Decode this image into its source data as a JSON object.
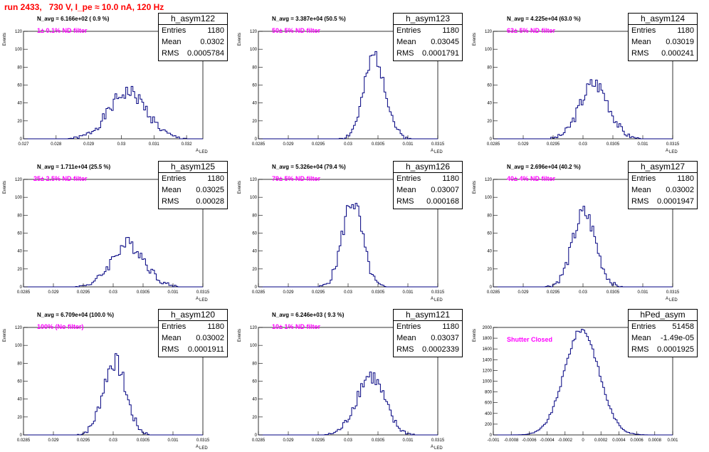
{
  "title": "run 2433,   730 V, I_pe ≈ 10.0 nA, 120 Hz",
  "stat_labels": {
    "entries": "Entries",
    "mean": "Mean",
    "rms": "RMS"
  },
  "colors": {
    "histogram": "#000080",
    "title": "#ff0000",
    "annotation": "#ff00ff"
  },
  "chart_data": [
    {
      "type": "bar",
      "name": "h_asym122",
      "entries": "1180",
      "mean": "0.0302",
      "rms": "0.0005784",
      "n_avg": "N_avg = 6.166e+02 ( 0.9 %)",
      "annotation": "1± 0.1% ND filter",
      "xlabel": "A",
      "xlabel_sub": "LED",
      "ylabel": "Events",
      "xlim": [
        0.027,
        0.0325
      ],
      "ylim": [
        0,
        120
      ],
      "xticks": [
        0.027,
        0.028,
        0.029,
        0.03,
        0.031,
        0.032
      ],
      "xtick_labels": [
        "0.027",
        "0.028",
        "0.029",
        "0.03",
        "0.031",
        "0.032"
      ],
      "yticks": [
        0,
        20,
        40,
        60,
        80,
        100,
        120
      ],
      "ytick_labels": [
        "0",
        "20",
        "40",
        "60",
        "80",
        "100",
        "120"
      ],
      "hist_mean": 0.0302,
      "hist_rms": 0.000578,
      "hist_peak": 52,
      "hist_seed": 1
    },
    {
      "type": "bar",
      "name": "h_asym123",
      "entries": "1180",
      "mean": "0.03045",
      "rms": "0.0001791",
      "n_avg": "N_avg = 3.387e+04 (50.5 %)",
      "annotation": "50± 5% ND filter",
      "xlabel": "A",
      "xlabel_sub": "LED",
      "ylabel": "Events",
      "xlim": [
        0.0285,
        0.0315
      ],
      "ylim": [
        0,
        120
      ],
      "xticks": [
        0.0285,
        0.029,
        0.0295,
        0.03,
        0.0305,
        0.031,
        0.0315
      ],
      "xtick_labels": [
        "0.0285",
        "0.029",
        "0.0295",
        "0.03",
        "0.0305",
        "0.031",
        "0.0315"
      ],
      "yticks": [
        0,
        20,
        40,
        60,
        80,
        100,
        120
      ],
      "ytick_labels": [
        "0",
        "20",
        "40",
        "60",
        "80",
        "100",
        "120"
      ],
      "hist_mean": 0.03045,
      "hist_rms": 0.000179,
      "hist_peak": 92,
      "hist_seed": 2
    },
    {
      "type": "bar",
      "name": "h_asym124",
      "entries": "1180",
      "mean": "0.03019",
      "rms": "0.000241",
      "n_avg": "N_avg = 4.225e+04 (63.0 %)",
      "annotation": "63± 5% ND filter",
      "xlabel": "A",
      "xlabel_sub": "LED",
      "ylabel": "Events",
      "xlim": [
        0.0285,
        0.0315
      ],
      "ylim": [
        0,
        120
      ],
      "xticks": [
        0.0285,
        0.029,
        0.0295,
        0.03,
        0.0305,
        0.031,
        0.0315
      ],
      "xtick_labels": [
        "0.0285",
        "0.029",
        "0.0295",
        "0.03",
        "0.0305",
        "0.031",
        "0.0315"
      ],
      "yticks": [
        0,
        20,
        40,
        60,
        80,
        100,
        120
      ],
      "ytick_labels": [
        "0",
        "20",
        "40",
        "60",
        "80",
        "100",
        "120"
      ],
      "hist_mean": 0.03019,
      "hist_rms": 0.000241,
      "hist_peak": 62,
      "hist_seed": 3
    },
    {
      "type": "bar",
      "name": "h_asym125",
      "entries": "1180",
      "mean": "0.03025",
      "rms": "0.00028",
      "n_avg": "N_avg = 1.711e+04 (25.5 %)",
      "annotation": "25± 2.5% ND filter",
      "xlabel": "A",
      "xlabel_sub": "LED",
      "ylabel": "Events",
      "xlim": [
        0.0285,
        0.0315
      ],
      "ylim": [
        0,
        120
      ],
      "xticks": [
        0.0285,
        0.029,
        0.0295,
        0.03,
        0.0305,
        0.031,
        0.0315
      ],
      "xtick_labels": [
        "0.0285",
        "0.029",
        "0.0295",
        "0.03",
        "0.0305",
        "0.031",
        "0.0315"
      ],
      "yticks": [
        0,
        20,
        40,
        60,
        80,
        100,
        120
      ],
      "ytick_labels": [
        "0",
        "20",
        "40",
        "60",
        "80",
        "100",
        "120"
      ],
      "hist_mean": 0.03025,
      "hist_rms": 0.00028,
      "hist_peak": 48,
      "hist_seed": 4
    },
    {
      "type": "bar",
      "name": "h_asym126",
      "entries": "1180",
      "mean": "0.03007",
      "rms": "0.000168",
      "n_avg": "N_avg = 5.326e+04 (79.4 %)",
      "annotation": "79± 5% ND filter",
      "xlabel": "A",
      "xlabel_sub": "LED",
      "ylabel": "Events",
      "xlim": [
        0.0285,
        0.0315
      ],
      "ylim": [
        0,
        120
      ],
      "xticks": [
        0.0285,
        0.029,
        0.0295,
        0.03,
        0.0305,
        0.031,
        0.0315
      ],
      "xtick_labels": [
        "0.0285",
        "0.029",
        "0.0295",
        "0.03",
        "0.0305",
        "0.031",
        "0.0315"
      ],
      "yticks": [
        0,
        20,
        40,
        60,
        80,
        100,
        120
      ],
      "ytick_labels": [
        "0",
        "20",
        "40",
        "60",
        "80",
        "100",
        "120"
      ],
      "hist_mean": 0.03007,
      "hist_rms": 0.000168,
      "hist_peak": 96,
      "hist_seed": 5
    },
    {
      "type": "bar",
      "name": "h_asym127",
      "entries": "1180",
      "mean": "0.03002",
      "rms": "0.0001947",
      "n_avg": "N_avg = 2.696e+04 (40.2 %)",
      "annotation": "40± 4% ND filter",
      "xlabel": "A",
      "xlabel_sub": "LED",
      "ylabel": "Events",
      "xlim": [
        0.0285,
        0.0315
      ],
      "ylim": [
        0,
        120
      ],
      "xticks": [
        0.0285,
        0.029,
        0.0295,
        0.03,
        0.0305,
        0.031,
        0.0315
      ],
      "xtick_labels": [
        "0.0285",
        "0.029",
        "0.0295",
        "0.03",
        "0.0305",
        "0.031",
        "0.0315"
      ],
      "yticks": [
        0,
        20,
        40,
        60,
        80,
        100,
        120
      ],
      "ytick_labels": [
        "0",
        "20",
        "40",
        "60",
        "80",
        "100",
        "120"
      ],
      "hist_mean": 0.03002,
      "hist_rms": 0.000195,
      "hist_peak": 82,
      "hist_seed": 6
    },
    {
      "type": "bar",
      "name": "h_asym120",
      "entries": "1180",
      "mean": "0.03002",
      "rms": "0.0001911",
      "n_avg": "N_avg = 6.709e+04 (100.0 %)",
      "annotation": "100% (No filter)",
      "xlabel": "A",
      "xlabel_sub": "LED",
      "ylabel": "Events",
      "xlim": [
        0.0285,
        0.0315
      ],
      "ylim": [
        0,
        120
      ],
      "xticks": [
        0.0285,
        0.029,
        0.0295,
        0.03,
        0.0305,
        0.031,
        0.0315
      ],
      "xtick_labels": [
        "0.0285",
        "0.029",
        "0.0295",
        "0.03",
        "0.0305",
        "0.031",
        "0.0315"
      ],
      "yticks": [
        0,
        20,
        40,
        60,
        80,
        100,
        120
      ],
      "ytick_labels": [
        "0",
        "20",
        "40",
        "60",
        "80",
        "100",
        "120"
      ],
      "hist_mean": 0.03002,
      "hist_rms": 0.000191,
      "hist_peak": 82,
      "hist_seed": 7
    },
    {
      "type": "bar",
      "name": "h_asym121",
      "entries": "1180",
      "mean": "0.03037",
      "rms": "0.0002339",
      "n_avg": "N_avg = 6.246e+03 ( 9.3 %)",
      "annotation": "10± 1% ND filter",
      "xlabel": "A",
      "xlabel_sub": "LED",
      "ylabel": "Events",
      "xlim": [
        0.0285,
        0.0315
      ],
      "ylim": [
        0,
        120
      ],
      "xticks": [
        0.0285,
        0.029,
        0.0295,
        0.03,
        0.0305,
        0.031,
        0.0315
      ],
      "xtick_labels": [
        "0.0285",
        "0.029",
        "0.0295",
        "0.03",
        "0.0305",
        "0.031",
        "0.0315"
      ],
      "yticks": [
        0,
        20,
        40,
        60,
        80,
        100,
        120
      ],
      "ytick_labels": [
        "0",
        "20",
        "40",
        "60",
        "80",
        "100",
        "120"
      ],
      "hist_mean": 0.03037,
      "hist_rms": 0.000234,
      "hist_peak": 66,
      "hist_seed": 8
    },
    {
      "type": "bar",
      "name": "hPed_asym",
      "entries": "51458",
      "mean": "-1.49e-05",
      "rms": "0.0001925",
      "n_avg": "",
      "annotation": "Shutter Closed",
      "xlabel": "",
      "xlabel_sub": "",
      "ylabel": "Events",
      "xlim": [
        -0.001,
        0.001
      ],
      "ylim": [
        0,
        2000
      ],
      "xticks": [
        -0.001,
        -0.0008,
        -0.0006,
        -0.0004,
        -0.0002,
        0,
        0.0002,
        0.0004,
        0.0006,
        0.0008,
        0.001
      ],
      "xtick_labels": [
        "-0.001",
        "-0.0008",
        "-0.0006",
        "-0.0004",
        "-0.0002",
        "0",
        "0.0002",
        "0.0004",
        "0.0006",
        "0.0008",
        "0.001"
      ],
      "yticks": [
        0,
        200,
        400,
        600,
        800,
        1000,
        1200,
        1400,
        1600,
        1800,
        2000
      ],
      "ytick_labels": [
        "0",
        "200",
        "400",
        "600",
        "800",
        "1000",
        "1200",
        "1400",
        "1600",
        "1800",
        "2000"
      ],
      "hist_mean": -1.49e-05,
      "hist_rms": 0.0001925,
      "hist_peak": 1960,
      "hist_seed": 9
    }
  ]
}
